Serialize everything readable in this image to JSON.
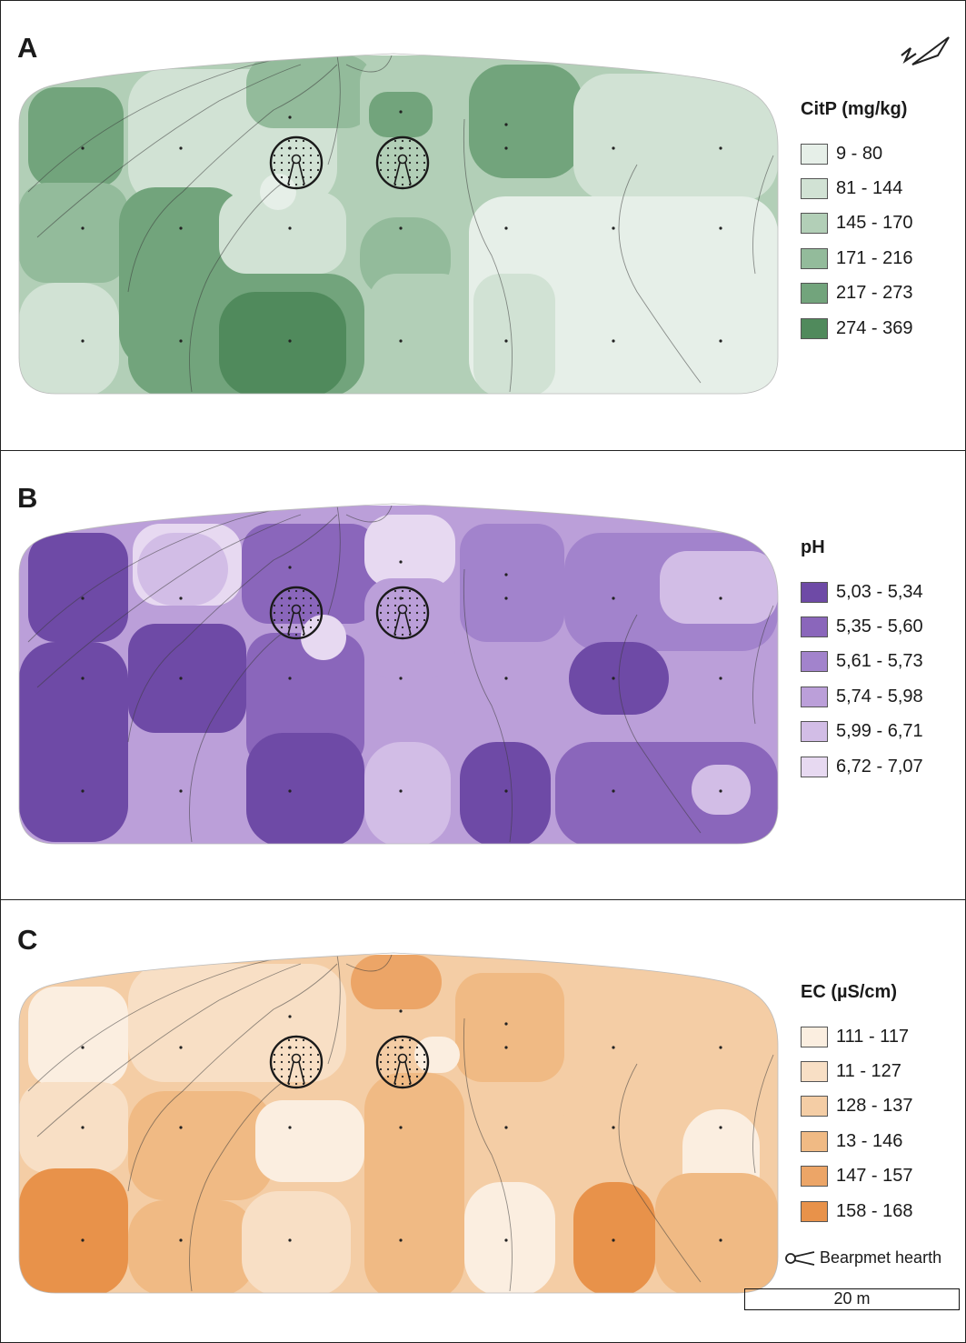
{
  "panels": [
    {
      "id": "A",
      "legend_title": "CitP (mg/kg)",
      "classes": [
        {
          "label": "9 - 80",
          "color": "#e6efe8"
        },
        {
          "label": "81 - 144",
          "color": "#d1e2d4"
        },
        {
          "label": "145 - 170",
          "color": "#b2cfb7"
        },
        {
          "label": "171 - 216",
          "color": "#93bb9b"
        },
        {
          "label": "217 - 273",
          "color": "#72a47c"
        },
        {
          "label": "274 - 369",
          "color": "#508a5c"
        }
      ]
    },
    {
      "id": "B",
      "legend_title": "pH",
      "classes": [
        {
          "label": "5,03 - 5,34",
          "color": "#6e4aa6"
        },
        {
          "label": "5,35 - 5,60",
          "color": "#8a66bb"
        },
        {
          "label": "5,61 - 5,73",
          "color": "#a283cc"
        },
        {
          "label": "5,74 - 5,98",
          "color": "#bb9fd9"
        },
        {
          "label": "5,99 - 6,71",
          "color": "#d2bde6"
        },
        {
          "label": "6,72 - 7,07",
          "color": "#e7d9f1"
        }
      ]
    },
    {
      "id": "C",
      "legend_title": "EC (µS/cm)",
      "classes": [
        {
          "label": "111 - 117",
          "color": "#fbeee0"
        },
        {
          "label": "11 - 127",
          "color": "#f8dfc5"
        },
        {
          "label": "128 - 137",
          "color": "#f4cda5"
        },
        {
          "label": "13 - 146",
          "color": "#f0ba84"
        },
        {
          "label": "147 - 157",
          "color": "#eca567"
        },
        {
          "label": "158 - 168",
          "color": "#e8924a"
        }
      ]
    }
  ],
  "hearth_label": "Bearpmet hearth",
  "scale_label": "20 m",
  "icons": {
    "north_arrow": "north-arrow-icon",
    "hearth": "hearth-symbol-icon"
  }
}
